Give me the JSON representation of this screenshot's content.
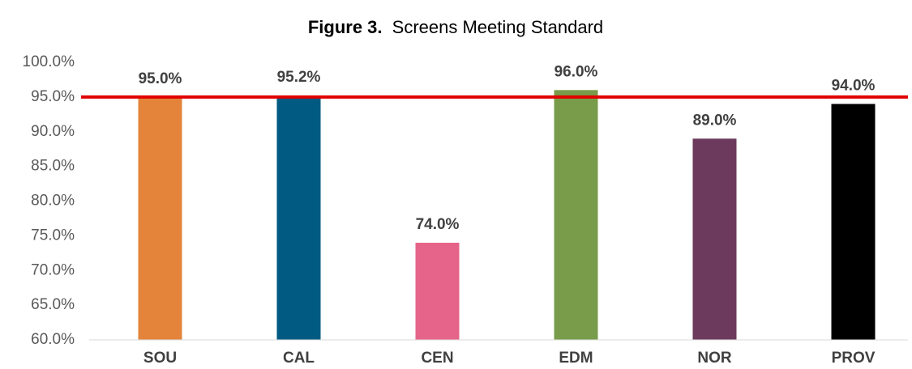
{
  "chart_data": {
    "type": "bar",
    "title_label": "Figure 3.",
    "title": "Screens Meeting Standard",
    "categories": [
      "SOU",
      "CAL",
      "CEN",
      "EDM",
      "NOR",
      "PROV"
    ],
    "values": [
      95.0,
      95.2,
      74.0,
      96.0,
      89.0,
      94.0
    ],
    "value_labels": [
      "95.0%",
      "95.2%",
      "74.0%",
      "96.0%",
      "89.0%",
      "94.0%"
    ],
    "colors": [
      "#e3843a",
      "#005a82",
      "#e6648a",
      "#789c4a",
      "#6c3a5c",
      "#000000"
    ],
    "ylim": [
      60,
      100
    ],
    "yticks": [
      {
        "value": 60,
        "label": "60.0%"
      },
      {
        "value": 65,
        "label": "65.0%"
      },
      {
        "value": 70,
        "label": "70.0%"
      },
      {
        "value": 75,
        "label": "75.0%"
      },
      {
        "value": 80,
        "label": "80.0%"
      },
      {
        "value": 85,
        "label": "85.0%"
      },
      {
        "value": 90,
        "label": "90.0%"
      },
      {
        "value": 95,
        "label": "95.0%"
      },
      {
        "value": 100,
        "label": "100.0%"
      }
    ],
    "grid": false,
    "reference_line": {
      "value": 95,
      "color": "#e00000"
    }
  }
}
